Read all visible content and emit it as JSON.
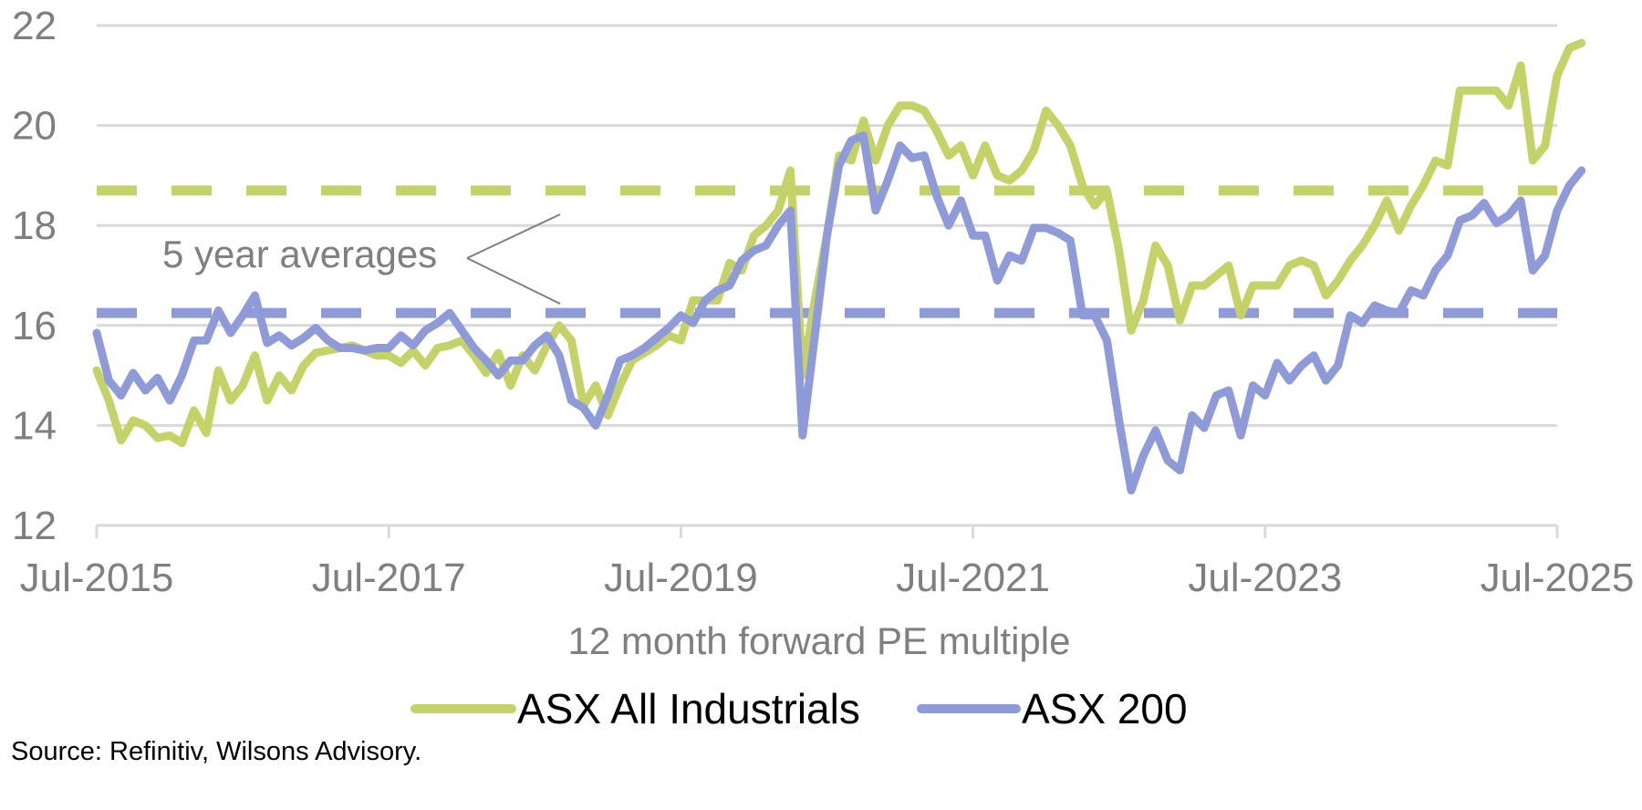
{
  "chart_data": {
    "type": "line",
    "xlabel": "12 month forward PE multiple",
    "ylim": [
      12,
      22
    ],
    "yticks": [
      12,
      14,
      16,
      18,
      20,
      22
    ],
    "x_ticks": [
      "Jul-2015",
      "Jul-2017",
      "Jul-2019",
      "Jul-2021",
      "Jul-2023",
      "Jul-2025"
    ],
    "x_range": [
      "2015-07",
      "2025-07"
    ],
    "grid": "horizontal",
    "legend_position": "bottom",
    "annotation": "5 year averages",
    "averages": [
      {
        "series": "ASX All Industrials",
        "value": 18.7
      },
      {
        "series": "ASX 200",
        "value": 16.25
      }
    ],
    "series": [
      {
        "name": "ASX All Industrials",
        "color": "#c5d267",
        "points": [
          [
            "2015-07",
            15.1
          ],
          [
            "2015-08",
            14.5
          ],
          [
            "2015-09",
            13.7
          ],
          [
            "2015-10",
            14.1
          ],
          [
            "2015-11",
            14.0
          ],
          [
            "2015-12",
            13.75
          ],
          [
            "2016-01",
            13.8
          ],
          [
            "2016-02",
            13.65
          ],
          [
            "2016-03",
            14.3
          ],
          [
            "2016-04",
            13.85
          ],
          [
            "2016-05",
            15.1
          ],
          [
            "2016-06",
            14.5
          ],
          [
            "2016-07",
            14.8
          ],
          [
            "2016-08",
            15.4
          ],
          [
            "2016-09",
            14.5
          ],
          [
            "2016-10",
            15.0
          ],
          [
            "2016-11",
            14.7
          ],
          [
            "2016-12",
            15.2
          ],
          [
            "2017-01",
            15.45
          ],
          [
            "2017-02",
            15.5
          ],
          [
            "2017-03",
            15.55
          ],
          [
            "2017-04",
            15.6
          ],
          [
            "2017-05",
            15.5
          ],
          [
            "2017-06",
            15.4
          ],
          [
            "2017-07",
            15.4
          ],
          [
            "2017-08",
            15.25
          ],
          [
            "2017-09",
            15.5
          ],
          [
            "2017-10",
            15.2
          ],
          [
            "2017-11",
            15.55
          ],
          [
            "2017-12",
            15.6
          ],
          [
            "2018-01",
            15.7
          ],
          [
            "2018-02",
            15.4
          ],
          [
            "2018-03",
            15.05
          ],
          [
            "2018-04",
            15.45
          ],
          [
            "2018-05",
            14.8
          ],
          [
            "2018-06",
            15.4
          ],
          [
            "2018-07",
            15.1
          ],
          [
            "2018-08",
            15.6
          ],
          [
            "2018-09",
            16.0
          ],
          [
            "2018-10",
            15.7
          ],
          [
            "2018-11",
            14.4
          ],
          [
            "2018-12",
            14.8
          ],
          [
            "2019-01",
            14.2
          ],
          [
            "2019-02",
            14.8
          ],
          [
            "2019-03",
            15.3
          ],
          [
            "2019-04",
            15.45
          ],
          [
            "2019-05",
            15.6
          ],
          [
            "2019-06",
            15.8
          ],
          [
            "2019-07",
            15.7
          ],
          [
            "2019-08",
            16.5
          ],
          [
            "2019-09",
            16.5
          ],
          [
            "2019-10",
            16.5
          ],
          [
            "2019-11",
            17.25
          ],
          [
            "2019-12",
            17.1
          ],
          [
            "2020-01",
            17.8
          ],
          [
            "2020-02",
            18.0
          ],
          [
            "2020-03",
            18.3
          ],
          [
            "2020-04",
            19.1
          ],
          [
            "2020-05",
            15.0
          ],
          [
            "2020-06",
            16.5
          ],
          [
            "2020-07",
            17.8
          ],
          [
            "2020-08",
            19.4
          ],
          [
            "2020-09",
            19.3
          ],
          [
            "2020-10",
            20.1
          ],
          [
            "2020-11",
            19.3
          ],
          [
            "2020-12",
            20.0
          ],
          [
            "2021-01",
            20.4
          ],
          [
            "2021-02",
            20.4
          ],
          [
            "2021-03",
            20.3
          ],
          [
            "2021-04",
            19.9
          ],
          [
            "2021-05",
            19.4
          ],
          [
            "2021-06",
            19.6
          ],
          [
            "2021-07",
            19.0
          ],
          [
            "2021-08",
            19.6
          ],
          [
            "2021-09",
            19.0
          ],
          [
            "2021-10",
            18.9
          ],
          [
            "2021-11",
            19.1
          ],
          [
            "2021-12",
            19.5
          ],
          [
            "2022-01",
            20.3
          ],
          [
            "2022-02",
            20.0
          ],
          [
            "2022-03",
            19.6
          ],
          [
            "2022-04",
            18.8
          ],
          [
            "2022-05",
            18.4
          ],
          [
            "2022-06",
            18.7
          ],
          [
            "2022-07",
            17.5
          ],
          [
            "2022-08",
            15.9
          ],
          [
            "2022-09",
            16.5
          ],
          [
            "2022-10",
            17.6
          ],
          [
            "2022-11",
            17.2
          ],
          [
            "2022-12",
            16.1
          ],
          [
            "2023-01",
            16.8
          ],
          [
            "2023-02",
            16.8
          ],
          [
            "2023-03",
            17.0
          ],
          [
            "2023-04",
            17.2
          ],
          [
            "2023-05",
            16.2
          ],
          [
            "2023-06",
            16.8
          ],
          [
            "2023-07",
            16.8
          ],
          [
            "2023-08",
            16.8
          ],
          [
            "2023-09",
            17.2
          ],
          [
            "2023-10",
            17.3
          ],
          [
            "2023-11",
            17.2
          ],
          [
            "2023-12",
            16.6
          ],
          [
            "2024-01",
            16.9
          ],
          [
            "2024-02",
            17.3
          ],
          [
            "2024-03",
            17.6
          ],
          [
            "2024-04",
            18.0
          ],
          [
            "2024-05",
            18.5
          ],
          [
            "2024-06",
            17.9
          ],
          [
            "2024-07",
            18.4
          ],
          [
            "2024-08",
            18.8
          ],
          [
            "2024-09",
            19.3
          ],
          [
            "2024-10",
            19.2
          ],
          [
            "2024-11",
            20.7
          ],
          [
            "2024-12",
            20.7
          ],
          [
            "2025-01",
            20.7
          ],
          [
            "2025-02",
            20.7
          ],
          [
            "2025-03",
            20.4
          ],
          [
            "2025-04",
            21.2
          ],
          [
            "2025-05",
            19.3
          ],
          [
            "2025-06",
            19.6
          ],
          [
            "2025-07",
            21.0
          ],
          [
            "2025-08",
            21.55
          ],
          [
            "2025-09",
            21.65
          ]
        ]
      },
      {
        "name": "ASX 200",
        "color": "#8f9ad8",
        "points": [
          [
            "2015-07",
            15.85
          ],
          [
            "2015-08",
            14.9
          ],
          [
            "2015-09",
            14.6
          ],
          [
            "2015-10",
            15.05
          ],
          [
            "2015-11",
            14.7
          ],
          [
            "2015-12",
            14.95
          ],
          [
            "2016-01",
            14.5
          ],
          [
            "2016-02",
            15.0
          ],
          [
            "2016-03",
            15.7
          ],
          [
            "2016-04",
            15.7
          ],
          [
            "2016-05",
            16.3
          ],
          [
            "2016-06",
            15.85
          ],
          [
            "2016-07",
            16.2
          ],
          [
            "2016-08",
            16.6
          ],
          [
            "2016-09",
            15.65
          ],
          [
            "2016-10",
            15.8
          ],
          [
            "2016-11",
            15.6
          ],
          [
            "2016-12",
            15.75
          ],
          [
            "2017-01",
            15.95
          ],
          [
            "2017-02",
            15.7
          ],
          [
            "2017-03",
            15.55
          ],
          [
            "2017-04",
            15.55
          ],
          [
            "2017-05",
            15.5
          ],
          [
            "2017-06",
            15.55
          ],
          [
            "2017-07",
            15.55
          ],
          [
            "2017-08",
            15.8
          ],
          [
            "2017-09",
            15.6
          ],
          [
            "2017-10",
            15.9
          ],
          [
            "2017-11",
            16.05
          ],
          [
            "2017-12",
            16.25
          ],
          [
            "2018-01",
            15.9
          ],
          [
            "2018-02",
            15.55
          ],
          [
            "2018-03",
            15.3
          ],
          [
            "2018-04",
            15.0
          ],
          [
            "2018-05",
            15.3
          ],
          [
            "2018-06",
            15.3
          ],
          [
            "2018-07",
            15.6
          ],
          [
            "2018-08",
            15.8
          ],
          [
            "2018-09",
            15.4
          ],
          [
            "2018-10",
            14.5
          ],
          [
            "2018-11",
            14.35
          ],
          [
            "2018-12",
            14.0
          ],
          [
            "2019-01",
            14.6
          ],
          [
            "2019-02",
            15.3
          ],
          [
            "2019-03",
            15.4
          ],
          [
            "2019-04",
            15.55
          ],
          [
            "2019-05",
            15.75
          ],
          [
            "2019-06",
            15.95
          ],
          [
            "2019-07",
            16.2
          ],
          [
            "2019-08",
            16.05
          ],
          [
            "2019-09",
            16.5
          ],
          [
            "2019-10",
            16.7
          ],
          [
            "2019-11",
            16.8
          ],
          [
            "2019-12",
            17.3
          ],
          [
            "2020-01",
            17.5
          ],
          [
            "2020-02",
            17.6
          ],
          [
            "2020-03",
            18.0
          ],
          [
            "2020-04",
            18.3
          ],
          [
            "2020-05",
            13.8
          ],
          [
            "2020-06",
            15.8
          ],
          [
            "2020-07",
            17.8
          ],
          [
            "2020-08",
            19.2
          ],
          [
            "2020-09",
            19.7
          ],
          [
            "2020-10",
            19.8
          ],
          [
            "2020-11",
            18.3
          ],
          [
            "2020-12",
            18.9
          ],
          [
            "2021-01",
            19.6
          ],
          [
            "2021-02",
            19.35
          ],
          [
            "2021-03",
            19.4
          ],
          [
            "2021-04",
            18.6
          ],
          [
            "2021-05",
            18.0
          ],
          [
            "2021-06",
            18.5
          ],
          [
            "2021-07",
            17.8
          ],
          [
            "2021-08",
            17.8
          ],
          [
            "2021-09",
            16.9
          ],
          [
            "2021-10",
            17.4
          ],
          [
            "2021-11",
            17.3
          ],
          [
            "2021-12",
            17.95
          ],
          [
            "2022-01",
            17.95
          ],
          [
            "2022-02",
            17.85
          ],
          [
            "2022-03",
            17.7
          ],
          [
            "2022-04",
            16.2
          ],
          [
            "2022-05",
            16.2
          ],
          [
            "2022-06",
            15.7
          ],
          [
            "2022-07",
            14.1
          ],
          [
            "2022-08",
            12.7
          ],
          [
            "2022-09",
            13.4
          ],
          [
            "2022-10",
            13.9
          ],
          [
            "2022-11",
            13.3
          ],
          [
            "2022-12",
            13.1
          ],
          [
            "2023-01",
            14.2
          ],
          [
            "2023-02",
            13.95
          ],
          [
            "2023-03",
            14.6
          ],
          [
            "2023-04",
            14.7
          ],
          [
            "2023-05",
            13.8
          ],
          [
            "2023-06",
            14.8
          ],
          [
            "2023-07",
            14.6
          ],
          [
            "2023-08",
            15.25
          ],
          [
            "2023-09",
            14.9
          ],
          [
            "2023-10",
            15.2
          ],
          [
            "2023-11",
            15.4
          ],
          [
            "2023-12",
            14.9
          ],
          [
            "2024-01",
            15.2
          ],
          [
            "2024-02",
            16.2
          ],
          [
            "2024-03",
            16.05
          ],
          [
            "2024-04",
            16.4
          ],
          [
            "2024-05",
            16.3
          ],
          [
            "2024-06",
            16.25
          ],
          [
            "2024-07",
            16.7
          ],
          [
            "2024-08",
            16.6
          ],
          [
            "2024-09",
            17.1
          ],
          [
            "2024-10",
            17.4
          ],
          [
            "2024-11",
            18.1
          ],
          [
            "2024-12",
            18.2
          ],
          [
            "2025-01",
            18.45
          ],
          [
            "2025-02",
            18.05
          ],
          [
            "2025-03",
            18.2
          ],
          [
            "2025-04",
            18.5
          ],
          [
            "2025-05",
            17.1
          ],
          [
            "2025-06",
            17.4
          ],
          [
            "2025-07",
            18.3
          ],
          [
            "2025-08",
            18.8
          ],
          [
            "2025-09",
            19.1
          ]
        ]
      }
    ]
  },
  "source": "Source: Refinitiv, Wilsons Advisory."
}
